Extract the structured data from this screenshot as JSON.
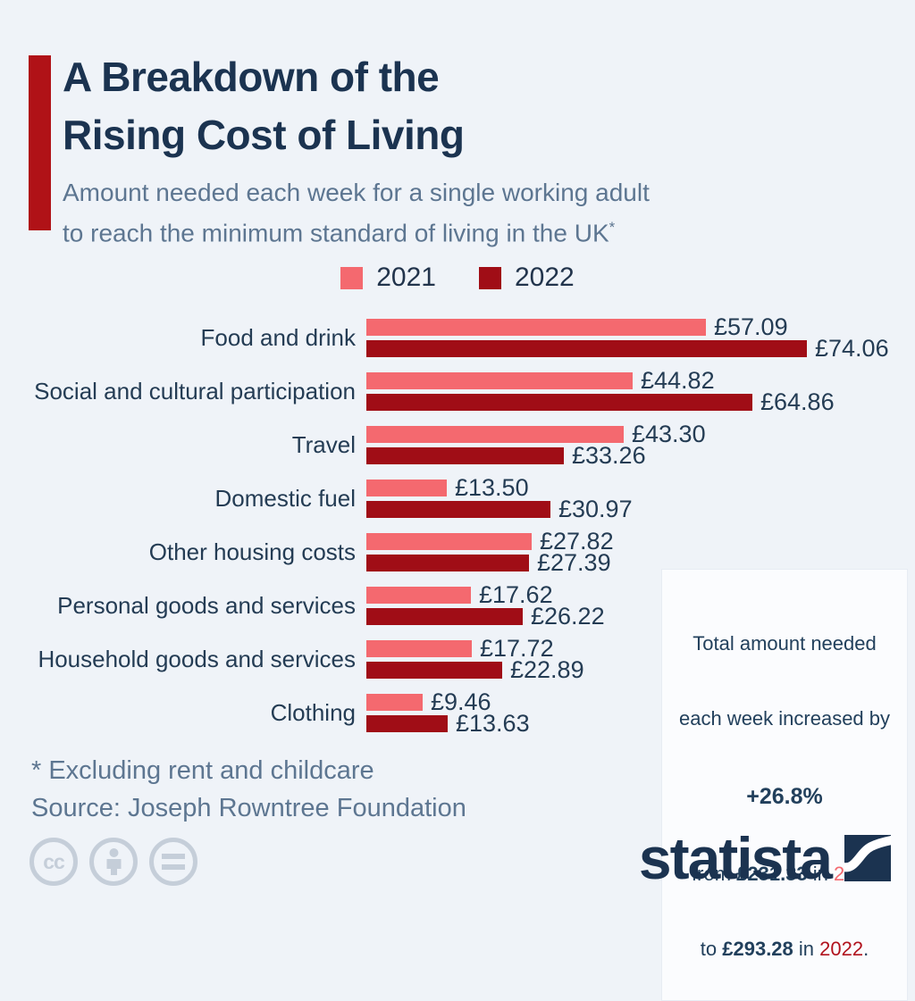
{
  "colors": {
    "background": "#eff3f8",
    "accent_red": "#b01217",
    "title_navy": "#1b3350",
    "subtitle_gray_blue": "#5d7691",
    "series_2021_salmon": "#f4696f",
    "series_2022_dark_red": "#a00d16",
    "callout_2022_red": "#b1121d",
    "license_icon_gray": "#c5ced9"
  },
  "header": {
    "title_line1": "A Breakdown of the",
    "title_line2": "Rising Cost of Living",
    "subtitle_line1": "Amount needed each week for a single working adult",
    "subtitle_line2": "to reach the minimum standard of living in the UK",
    "footnote_marker": "*"
  },
  "legend": {
    "items": [
      {
        "label": "2021",
        "color": "#f4696f"
      },
      {
        "label": "2022",
        "color": "#a00d16"
      }
    ]
  },
  "chart_data": {
    "type": "bar",
    "orientation": "horizontal",
    "title": "A Breakdown of the Rising Cost of Living",
    "subtitle": "Amount needed each week for a single working adult to reach the minimum standard of living in the UK*",
    "categories": [
      "Food and drink",
      "Social and cultural participation",
      "Travel",
      "Domestic fuel",
      "Other housing costs",
      "Personal goods and services",
      "Household goods and services",
      "Clothing"
    ],
    "series": [
      {
        "name": "2021",
        "color": "#f4696f",
        "values": [
          57.09,
          44.82,
          43.3,
          13.5,
          27.82,
          17.62,
          17.72,
          9.46
        ]
      },
      {
        "name": "2022",
        "color": "#a00d16",
        "values": [
          74.06,
          64.86,
          33.26,
          30.97,
          27.39,
          26.22,
          22.89,
          13.63
        ]
      }
    ],
    "value_labels": [
      [
        "£57.09",
        "£74.06"
      ],
      [
        "£44.82",
        "£64.86"
      ],
      [
        "£43.30",
        "£33.26"
      ],
      [
        "£13.50",
        "£30.97"
      ],
      [
        "£27.82",
        "£27.39"
      ],
      [
        "£17.62",
        "£26.22"
      ],
      [
        "£17.72",
        "£22.89"
      ],
      [
        "£9.46",
        "£13.63"
      ]
    ],
    "value_prefix": "£",
    "xlim": [
      0,
      74.06
    ],
    "grid": false,
    "legend_position": "top-center"
  },
  "callout": {
    "line1": "Total amount needed",
    "line2": "each week increased by",
    "percentage": "+26.8%",
    "from_prefix": "from ",
    "from_amount": "£231.33",
    "from_infix": " in ",
    "from_year": "2021",
    "to_prefix": "to ",
    "to_amount": "£293.28",
    "to_infix": " in ",
    "to_year": "2022",
    "period": "."
  },
  "footnotes": {
    "asterisk_note": "* Excluding rent and childcare",
    "source": "Source: Joseph Rowntree Foundation"
  },
  "branding": {
    "wordmark": "statista",
    "license_icons": [
      "cc-icon",
      "attribution-person-icon",
      "no-derivatives-equals-icon"
    ]
  }
}
